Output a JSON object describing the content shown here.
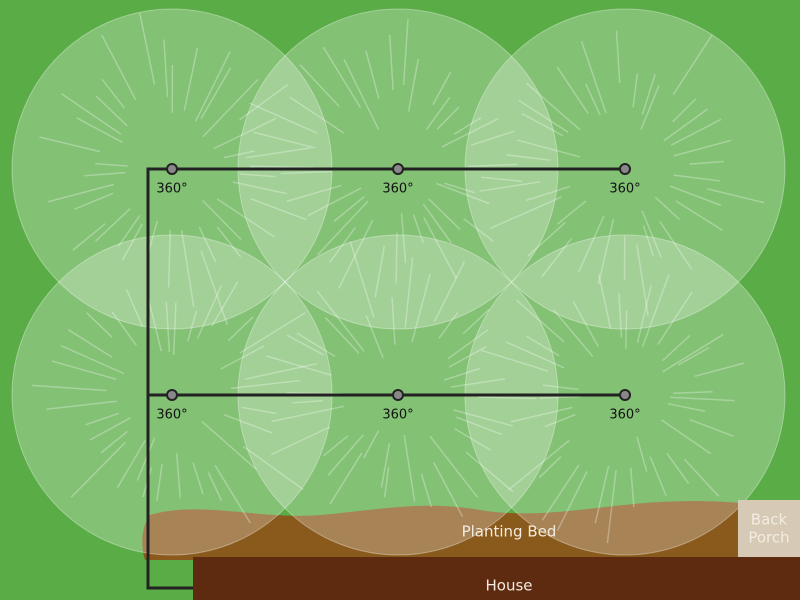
{
  "sprinklers": [
    {
      "label": "360°"
    },
    {
      "label": "360°"
    },
    {
      "label": "360°"
    },
    {
      "label": "360°"
    },
    {
      "label": "360°"
    },
    {
      "label": "360°"
    }
  ],
  "areas": {
    "planting_bed": "Planting Bed",
    "back_porch": [
      "Back",
      "Porch"
    ],
    "house": "House"
  }
}
